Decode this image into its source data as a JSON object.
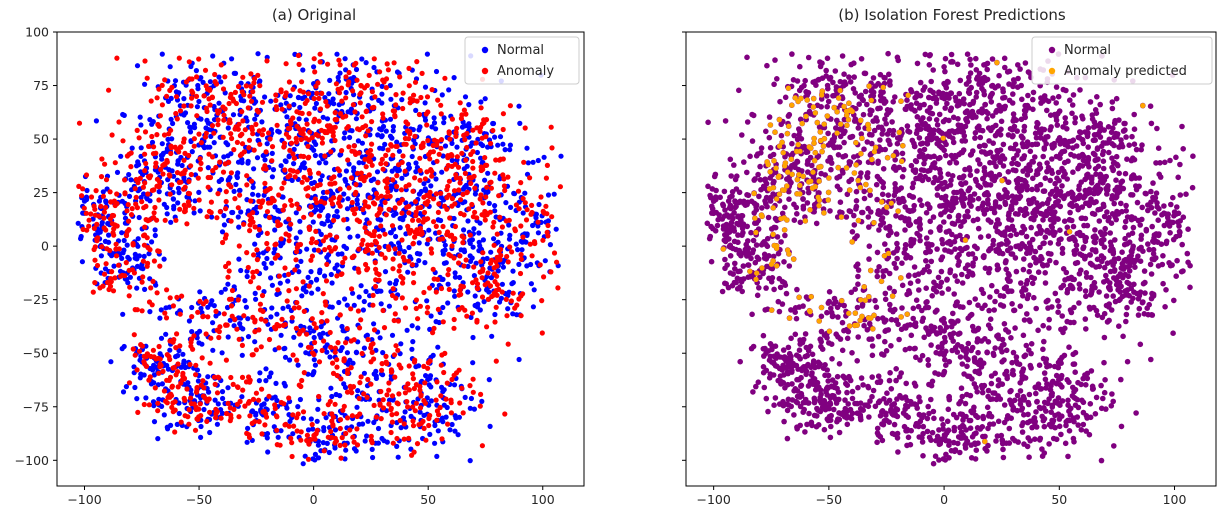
{
  "chart_data": [
    {
      "type": "scatter",
      "title": "(a) Original",
      "xlabel": "",
      "ylabel": "",
      "xlim": [
        -112,
        118
      ],
      "ylim": [
        -112,
        100
      ],
      "x_ticks": [
        -100,
        -50,
        0,
        50,
        100
      ],
      "y_ticks": [
        -100,
        -75,
        -50,
        -25,
        0,
        25,
        50,
        75,
        100
      ],
      "x_tick_labels": [
        "−100",
        "−50",
        "0",
        "50",
        "100"
      ],
      "y_tick_labels": [
        "−100",
        "−75",
        "−50",
        "−25",
        "0",
        "25",
        "50",
        "75",
        "100"
      ],
      "grid": false,
      "legend_position": "top-right",
      "series": [
        {
          "name": "Normal",
          "color": "#0000ff",
          "description_of_distribution": "t-SNE embedding cloud covering roughly x in [-103, 108], y in [-102, 90]",
          "values": "generated"
        },
        {
          "name": "Anomaly",
          "color": "#ff0000",
          "values": "generated"
        }
      ]
    },
    {
      "type": "scatter",
      "title": "(b) Isolation Forest Predictions",
      "xlabel": "",
      "ylabel": "",
      "xlim": [
        -112,
        118
      ],
      "ylim": [
        -112,
        100
      ],
      "x_ticks": [
        -100,
        -50,
        0,
        50,
        100
      ],
      "y_ticks": [
        -100,
        -75,
        -50,
        -25,
        0,
        25,
        50,
        75,
        100
      ],
      "x_tick_labels": [
        "−100",
        "−50",
        "0",
        "50",
        "100"
      ],
      "y_tick_labels": [],
      "grid": false,
      "legend_position": "top-right",
      "series": [
        {
          "name": "Normal",
          "color": "#800080",
          "values": "generated"
        },
        {
          "name": "Anomaly predicted",
          "color": "#ffa500",
          "values": "generated"
        }
      ]
    }
  ]
}
